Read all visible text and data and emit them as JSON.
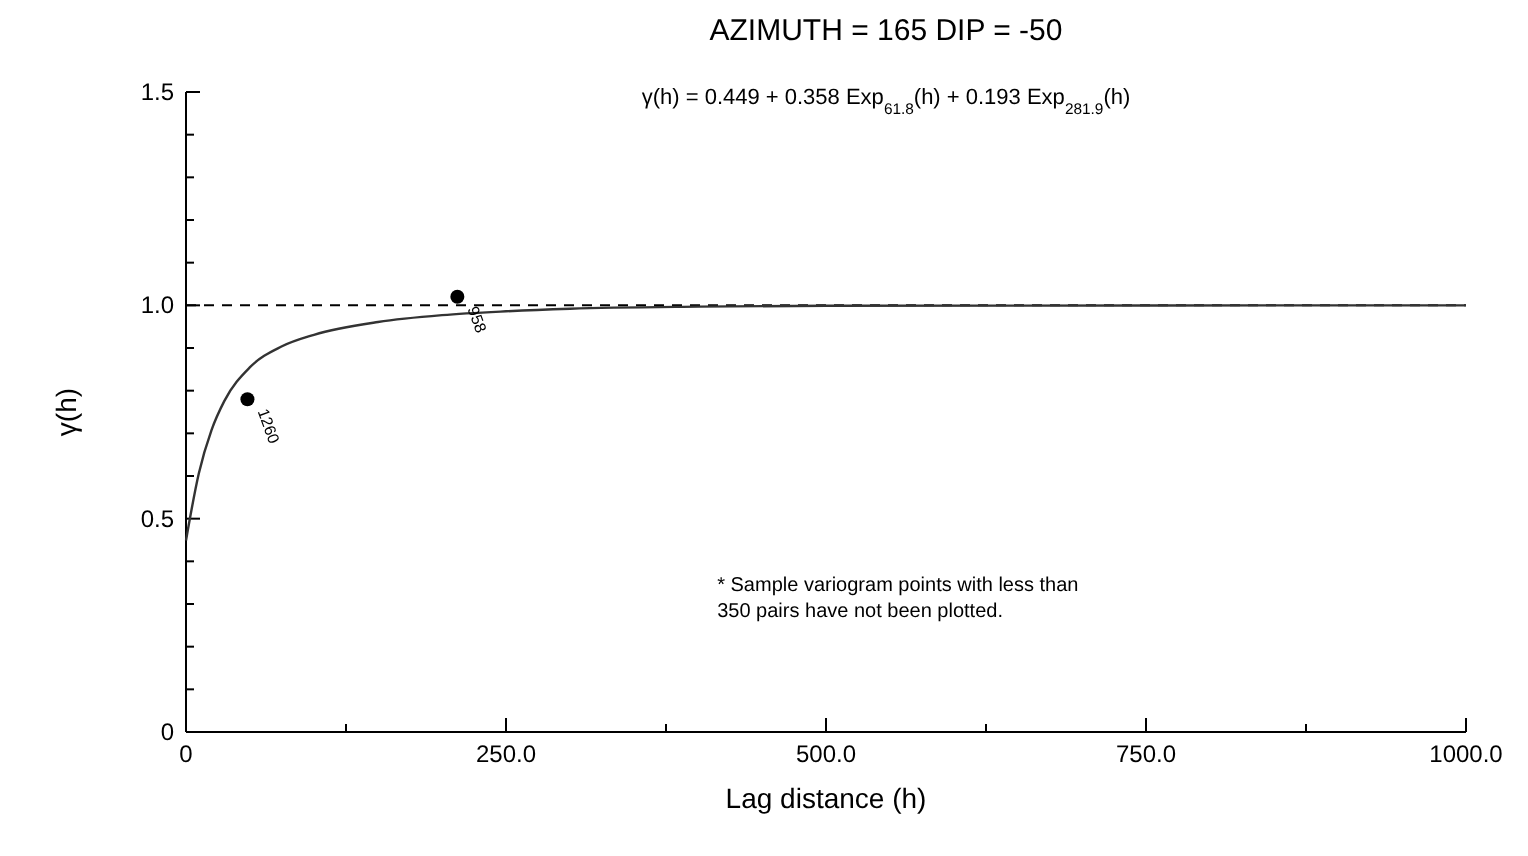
{
  "chart_data": {
    "type": "line",
    "title": "AZIMUTH = 165   DIP = -50",
    "subtitle": "γ(h) = 0.449 + 0.358 Exp$_{61.8}$(h) + 0.193 Exp$_{281.9}$(h)",
    "xlabel": "Lag distance (h)",
    "ylabel": "γ(h)",
    "series": [
      {
        "color": "#333333",
        "x": [
          0,
          10,
          20,
          30,
          50,
          75,
          100,
          150,
          200,
          250,
          300,
          400,
          500,
          1000
        ],
        "values": [
          0.449,
          0.606,
          0.708,
          0.776,
          0.855,
          0.904,
          0.931,
          0.961,
          0.977,
          0.986,
          0.992,
          0.997,
          0.999,
          1.0
        ]
      },
      {
        "type": "scatter",
        "color": "#000000",
        "marker": "circle",
        "x": [
          48,
          212
        ],
        "values": [
          0.78,
          1.02
        ]
      }
    ],
    "xlim": [
      0,
      1000
    ],
    "xticks": [
      0,
      {
        "value": 125,
        "label": null
      },
      {
        "value": 250,
        "label": "250.0"
      },
      {
        "value": 375,
        "label": null
      },
      {
        "value": 500,
        "label": "500.0"
      },
      {
        "value": 625,
        "label": null
      },
      {
        "value": 750,
        "label": "750.0"
      },
      {
        "value": 875,
        "label": null
      },
      {
        "value": 1000,
        "label": "1000.0"
      }
    ],
    "ylim": [
      0,
      1.5
    ],
    "yticks": [
      0,
      {
        "value": 0.1,
        "label": null
      },
      {
        "value": 0.2,
        "label": null
      },
      {
        "value": 0.3,
        "label": null
      },
      {
        "value": 0.4,
        "label": null
      },
      0.5,
      {
        "value": 0.6,
        "label": null
      },
      {
        "value": 0.7,
        "label": null
      },
      {
        "value": 0.8,
        "label": null
      },
      {
        "value": 0.9,
        "label": null
      },
      {
        "value": 1.0,
        "label": "1.0"
      },
      {
        "value": 1.1,
        "label": null
      },
      {
        "value": 1.2,
        "label": null
      },
      {
        "value": 1.3,
        "label": null
      },
      {
        "value": 1.4,
        "label": null
      },
      {
        "value": 1.5,
        "label": "1.5"
      }
    ],
    "ref_lines": [
      {
        "axis": "y",
        "value": 1.0,
        "line_style": "dashed",
        "color": "#000000"
      }
    ],
    "annotations": [
      {
        "text": "1260",
        "x": 48,
        "y": 0.78
      },
      {
        "text": "958",
        "x": 212,
        "y": 1.02
      },
      "* Sample variogram points with less than",
      "350 pairs have not been plotted."
    ]
  }
}
